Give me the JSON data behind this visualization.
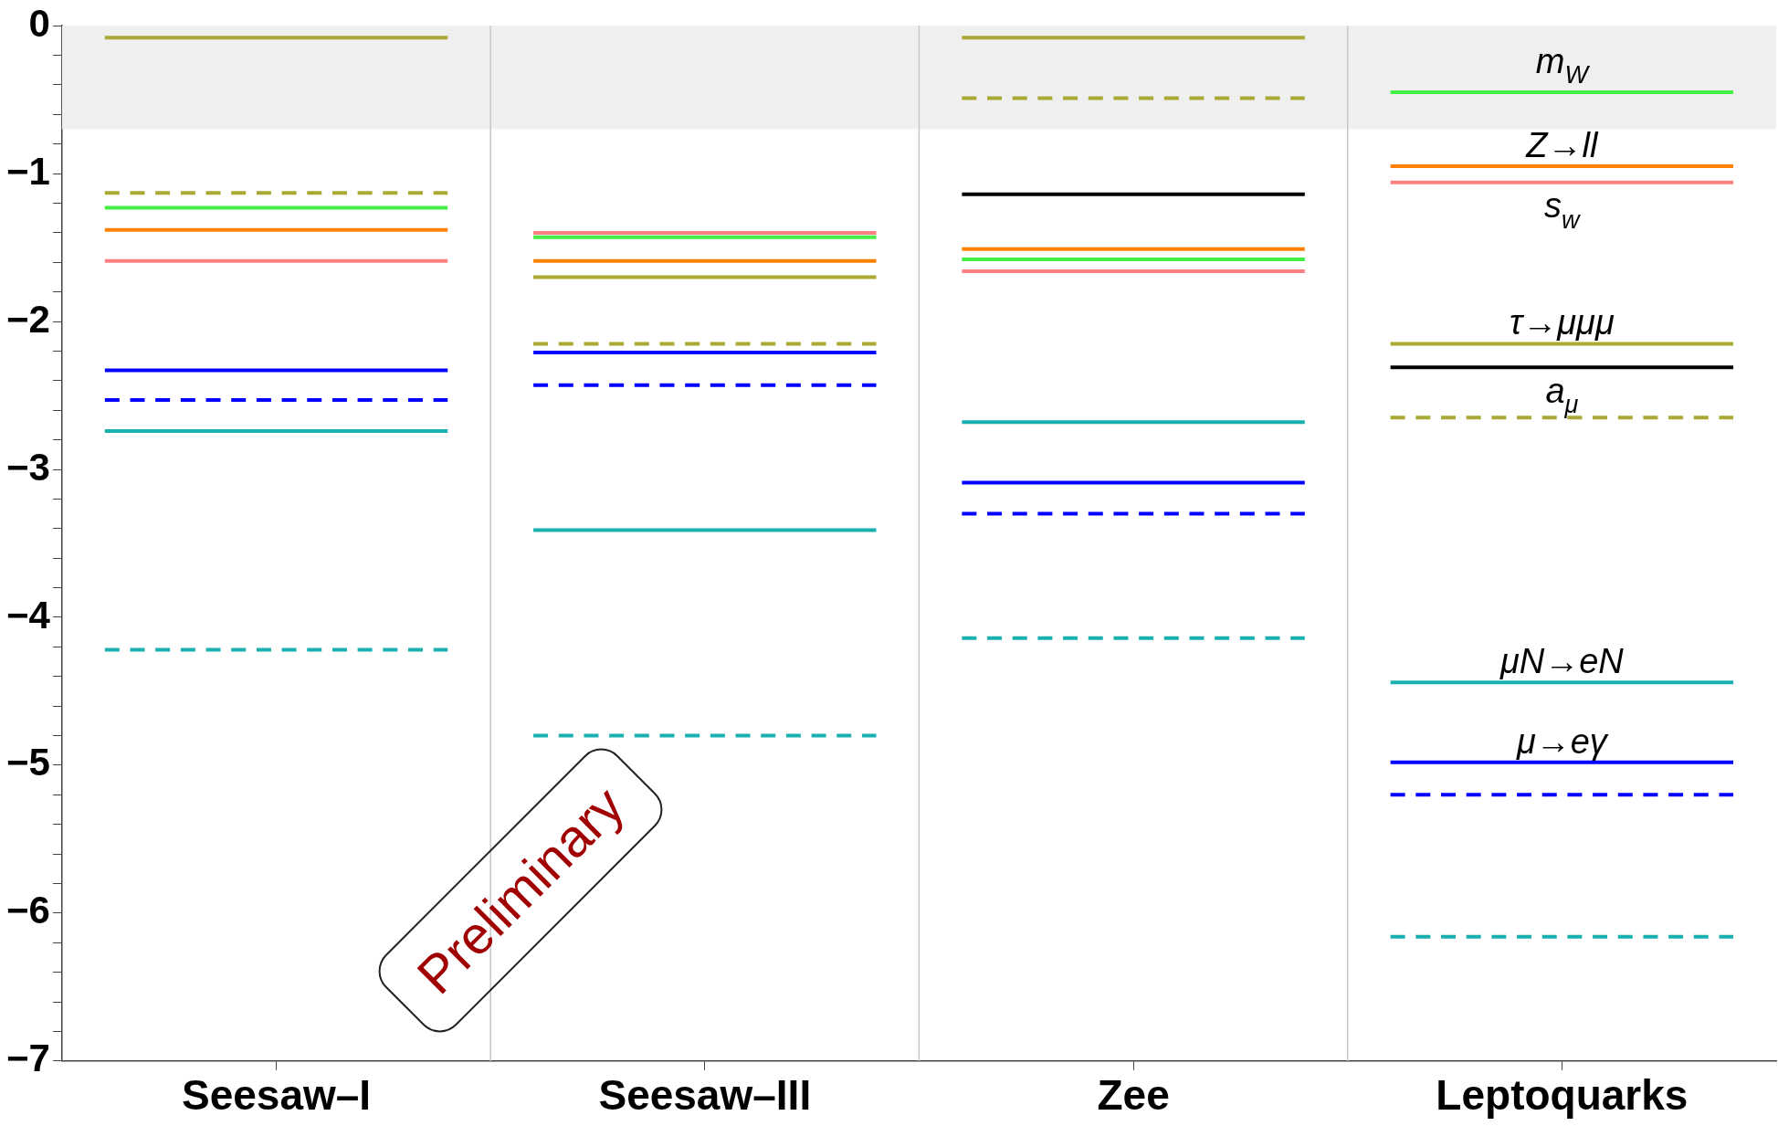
{
  "chart_data": {
    "type": "line",
    "categories": [
      null,
      null,
      "Seesaw–I",
      null,
      null,
      null,
      null,
      "Seesaw–III",
      null,
      null,
      null,
      null,
      "Zee",
      null,
      null,
      null,
      null,
      "Leptoquarks",
      null,
      null
    ],
    "ylim": [
      -7,
      0
    ],
    "yticks": [
      {
        "value": -7,
        "label": "−7"
      },
      {
        "value": -6.8,
        "label": null
      },
      {
        "value": -6.6,
        "label": null
      },
      {
        "value": -6.4,
        "label": null
      },
      {
        "value": -6.2,
        "label": null
      },
      {
        "value": -6,
        "label": "−6"
      },
      {
        "value": -5.8,
        "label": null
      },
      {
        "value": -5.6,
        "label": null
      },
      {
        "value": -5.4,
        "label": null
      },
      {
        "value": -5.2,
        "label": null
      },
      {
        "value": -5,
        "label": "−5"
      },
      {
        "value": -4.8,
        "label": null
      },
      {
        "value": -4.6,
        "label": null
      },
      {
        "value": -4.4,
        "label": null
      },
      {
        "value": -4.2,
        "label": null
      },
      {
        "value": -4,
        "label": "−4"
      },
      {
        "value": -3.8,
        "label": null
      },
      {
        "value": -3.6,
        "label": null
      },
      {
        "value": -3.4,
        "label": null
      },
      {
        "value": -3.2,
        "label": null
      },
      {
        "value": -3,
        "label": "−3"
      },
      {
        "value": -2.8,
        "label": null
      },
      {
        "value": -2.6,
        "label": null
      },
      {
        "value": -2.4,
        "label": null
      },
      {
        "value": -2.2,
        "label": null
      },
      {
        "value": -2,
        "label": "−2"
      },
      {
        "value": -1.8,
        "label": null
      },
      {
        "value": -1.6,
        "label": null
      },
      {
        "value": -1.4,
        "label": null
      },
      {
        "value": -1.2,
        "label": null
      },
      {
        "value": -1,
        "label": "−1"
      },
      {
        "value": -0.8,
        "label": null
      },
      {
        "value": -0.6,
        "label": null
      },
      {
        "value": -0.4,
        "label": null
      },
      {
        "value": -0.2,
        "label": null
      },
      {
        "value": 0,
        "label": "0"
      }
    ],
    "bands": [
      {
        "axis": "y",
        "from": -0.7,
        "to": 0,
        "color": "#efefef"
      }
    ],
    "grid": "x",
    "annotations": [
      "Preliminary"
    ],
    "series": [
      {
        "color": "#a9a933",
        "line_style": "solid",
        "values": [
          -0.08,
          -0.08,
          -0.08,
          -0.08,
          -0.08,
          null,
          null,
          null,
          null,
          null,
          null,
          null,
          null,
          null,
          null,
          null,
          null,
          null,
          null,
          null
        ]
      },
      {
        "color": "#a9a933",
        "line_style": "dashed",
        "values": [
          -1.13,
          -1.13,
          -1.13,
          -1.13,
          -1.13,
          null,
          null,
          null,
          null,
          null,
          null,
          null,
          null,
          null,
          null,
          null,
          null,
          null,
          null,
          null
        ]
      },
      {
        "color": "#44ee44",
        "line_style": "solid",
        "values": [
          -1.23,
          -1.23,
          -1.23,
          -1.23,
          -1.23,
          null,
          null,
          null,
          null,
          null,
          null,
          null,
          null,
          null,
          null,
          null,
          null,
          null,
          null,
          null
        ]
      },
      {
        "color": "#ff8000",
        "line_style": "solid",
        "values": [
          -1.38,
          -1.38,
          -1.38,
          -1.38,
          -1.38,
          null,
          null,
          null,
          null,
          null,
          null,
          null,
          null,
          null,
          null,
          null,
          null,
          null,
          null,
          null
        ]
      },
      {
        "color": "#ff8080",
        "line_style": "solid",
        "values": [
          -1.59,
          -1.59,
          -1.59,
          -1.59,
          -1.59,
          null,
          null,
          null,
          null,
          null,
          null,
          null,
          null,
          null,
          null,
          null,
          null,
          null,
          null,
          null
        ]
      },
      {
        "color": "#0000ff",
        "line_style": "solid",
        "values": [
          -2.33,
          -2.33,
          -2.33,
          -2.33,
          -2.33,
          null,
          null,
          null,
          null,
          null,
          null,
          null,
          null,
          null,
          null,
          null,
          null,
          null,
          null,
          null
        ]
      },
      {
        "color": "#0000ff",
        "line_style": "dashed",
        "values": [
          -2.53,
          -2.53,
          -2.53,
          -2.53,
          -2.53,
          null,
          null,
          null,
          null,
          null,
          null,
          null,
          null,
          null,
          null,
          null,
          null,
          null,
          null,
          null
        ]
      },
      {
        "color": "#1ab0b0",
        "line_style": "solid",
        "values": [
          -2.74,
          -2.74,
          -2.74,
          -2.74,
          -2.74,
          null,
          null,
          null,
          null,
          null,
          null,
          null,
          null,
          null,
          null,
          null,
          null,
          null,
          null,
          null
        ]
      },
      {
        "color": "#1ab0b0",
        "line_style": "dashed",
        "values": [
          -4.22,
          -4.22,
          -4.22,
          -4.22,
          -4.22,
          null,
          null,
          null,
          null,
          null,
          null,
          null,
          null,
          null,
          null,
          null,
          null,
          null,
          null,
          null
        ]
      },
      {
        "color": "#ff8080",
        "line_style": "solid",
        "values": [
          null,
          null,
          null,
          null,
          null,
          -1.4,
          -1.4,
          -1.4,
          -1.4,
          -1.4,
          null,
          null,
          null,
          null,
          null,
          null,
          null,
          null,
          null,
          null
        ]
      },
      {
        "color": "#44ee44",
        "line_style": "solid",
        "values": [
          null,
          null,
          null,
          null,
          null,
          -1.43,
          -1.43,
          -1.43,
          -1.43,
          -1.43,
          null,
          null,
          null,
          null,
          null,
          null,
          null,
          null,
          null,
          null
        ]
      },
      {
        "color": "#ff8000",
        "line_style": "solid",
        "values": [
          null,
          null,
          null,
          null,
          null,
          -1.59,
          -1.59,
          -1.59,
          -1.59,
          -1.59,
          null,
          null,
          null,
          null,
          null,
          null,
          null,
          null,
          null,
          null
        ]
      },
      {
        "color": "#a9a933",
        "line_style": "solid",
        "values": [
          null,
          null,
          null,
          null,
          null,
          -1.7,
          -1.7,
          -1.7,
          -1.7,
          -1.7,
          null,
          null,
          null,
          null,
          null,
          null,
          null,
          null,
          null,
          null
        ]
      },
      {
        "color": "#a9a933",
        "line_style": "dashed",
        "values": [
          null,
          null,
          null,
          null,
          null,
          -2.15,
          -2.15,
          -2.15,
          -2.15,
          -2.15,
          null,
          null,
          null,
          null,
          null,
          null,
          null,
          null,
          null,
          null
        ]
      },
      {
        "color": "#0000ff",
        "line_style": "solid",
        "values": [
          null,
          null,
          null,
          null,
          null,
          -2.21,
          -2.21,
          -2.21,
          -2.21,
          -2.21,
          null,
          null,
          null,
          null,
          null,
          null,
          null,
          null,
          null,
          null
        ]
      },
      {
        "color": "#0000ff",
        "line_style": "dashed",
        "values": [
          null,
          null,
          null,
          null,
          null,
          -2.43,
          -2.43,
          -2.43,
          -2.43,
          -2.43,
          null,
          null,
          null,
          null,
          null,
          null,
          null,
          null,
          null,
          null
        ]
      },
      {
        "color": "#1ab0b0",
        "line_style": "solid",
        "values": [
          null,
          null,
          null,
          null,
          null,
          -3.41,
          -3.41,
          -3.41,
          -3.41,
          -3.41,
          null,
          null,
          null,
          null,
          null,
          null,
          null,
          null,
          null,
          null
        ]
      },
      {
        "color": "#1ab0b0",
        "line_style": "dashed",
        "values": [
          null,
          null,
          null,
          null,
          null,
          -4.8,
          -4.8,
          -4.8,
          -4.8,
          -4.8,
          null,
          null,
          null,
          null,
          null,
          null,
          null,
          null,
          null,
          null
        ]
      },
      {
        "color": "#a9a933",
        "line_style": "solid",
        "values": [
          null,
          null,
          null,
          null,
          null,
          null,
          null,
          null,
          null,
          null,
          -0.08,
          -0.08,
          -0.08,
          -0.08,
          -0.08,
          null,
          null,
          null,
          null,
          null
        ]
      },
      {
        "color": "#a9a933",
        "line_style": "dashed",
        "values": [
          null,
          null,
          null,
          null,
          null,
          null,
          null,
          null,
          null,
          null,
          -0.49,
          -0.49,
          -0.49,
          -0.49,
          -0.49,
          null,
          null,
          null,
          null,
          null
        ]
      },
      {
        "color": "#000000",
        "line_style": "solid",
        "values": [
          null,
          null,
          null,
          null,
          null,
          null,
          null,
          null,
          null,
          null,
          -1.14,
          -1.14,
          -1.14,
          -1.14,
          -1.14,
          null,
          null,
          null,
          null,
          null
        ]
      },
      {
        "color": "#ff8000",
        "line_style": "solid",
        "values": [
          null,
          null,
          null,
          null,
          null,
          null,
          null,
          null,
          null,
          null,
          -1.51,
          -1.51,
          -1.51,
          -1.51,
          -1.51,
          null,
          null,
          null,
          null,
          null
        ]
      },
      {
        "color": "#44ee44",
        "line_style": "solid",
        "values": [
          null,
          null,
          null,
          null,
          null,
          null,
          null,
          null,
          null,
          null,
          -1.58,
          -1.58,
          -1.58,
          -1.58,
          -1.58,
          null,
          null,
          null,
          null,
          null
        ]
      },
      {
        "color": "#ff8080",
        "line_style": "solid",
        "values": [
          null,
          null,
          null,
          null,
          null,
          null,
          null,
          null,
          null,
          null,
          -1.66,
          -1.66,
          -1.66,
          -1.66,
          -1.66,
          null,
          null,
          null,
          null,
          null
        ]
      },
      {
        "color": "#1ab0b0",
        "line_style": "solid",
        "values": [
          null,
          null,
          null,
          null,
          null,
          null,
          null,
          null,
          null,
          null,
          -2.68,
          -2.68,
          -2.68,
          -2.68,
          -2.68,
          null,
          null,
          null,
          null,
          null
        ]
      },
      {
        "color": "#0000ff",
        "line_style": "solid",
        "values": [
          null,
          null,
          null,
          null,
          null,
          null,
          null,
          null,
          null,
          null,
          -3.09,
          -3.09,
          -3.09,
          -3.09,
          -3.09,
          null,
          null,
          null,
          null,
          null
        ]
      },
      {
        "color": "#0000ff",
        "line_style": "dashed",
        "values": [
          null,
          null,
          null,
          null,
          null,
          null,
          null,
          null,
          null,
          null,
          -3.3,
          -3.3,
          -3.3,
          -3.3,
          -3.3,
          null,
          null,
          null,
          null,
          null
        ]
      },
      {
        "color": "#1ab0b0",
        "line_style": "dashed",
        "values": [
          null,
          null,
          null,
          null,
          null,
          null,
          null,
          null,
          null,
          null,
          -4.14,
          -4.14,
          -4.14,
          -4.14,
          -4.14,
          null,
          null,
          null,
          null,
          null
        ]
      },
      {
        "name": "m$_{W}$",
        "color": "#44ee44",
        "line_style": "solid",
        "values": [
          null,
          null,
          null,
          null,
          null,
          null,
          null,
          null,
          null,
          null,
          null,
          null,
          null,
          null,
          null,
          -0.45,
          -0.45,
          -0.45,
          -0.45,
          -0.45
        ]
      },
      {
        "name": "Z→ll",
        "color": "#ff8000",
        "line_style": "solid",
        "values": [
          null,
          null,
          null,
          null,
          null,
          null,
          null,
          null,
          null,
          null,
          null,
          null,
          null,
          null,
          null,
          -0.95,
          -0.95,
          -0.95,
          -0.95,
          -0.95
        ]
      },
      {
        "name": "s$_{w}$",
        "color": "#ff8080",
        "line_style": "solid",
        "values": [
          null,
          null,
          null,
          null,
          null,
          null,
          null,
          null,
          null,
          null,
          null,
          null,
          null,
          null,
          null,
          -1.06,
          -1.06,
          -1.06,
          -1.06,
          -1.06
        ]
      },
      {
        "name": "τ→μμμ",
        "color": "#a9a933",
        "line_style": "solid",
        "values": [
          null,
          null,
          null,
          null,
          null,
          null,
          null,
          null,
          null,
          null,
          null,
          null,
          null,
          null,
          null,
          -2.15,
          -2.15,
          -2.15,
          -2.15,
          -2.15
        ]
      },
      {
        "name": "a$_{μ}$",
        "color": "#000000",
        "line_style": "solid",
        "values": [
          null,
          null,
          null,
          null,
          null,
          null,
          null,
          null,
          null,
          null,
          null,
          null,
          null,
          null,
          null,
          -2.31,
          -2.31,
          -2.31,
          -2.31,
          -2.31
        ]
      },
      {
        "color": "#a9a933",
        "line_style": "dashed",
        "values": [
          null,
          null,
          null,
          null,
          null,
          null,
          null,
          null,
          null,
          null,
          null,
          null,
          null,
          null,
          null,
          -2.65,
          -2.65,
          -2.65,
          -2.65,
          -2.65
        ]
      },
      {
        "name": "μN→eN",
        "color": "#1ab0b0",
        "line_style": "solid",
        "values": [
          null,
          null,
          null,
          null,
          null,
          null,
          null,
          null,
          null,
          null,
          null,
          null,
          null,
          null,
          null,
          -4.44,
          -4.44,
          -4.44,
          -4.44,
          -4.44
        ]
      },
      {
        "name": "μ→eγ",
        "color": "#0000ff",
        "line_style": "solid",
        "values": [
          null,
          null,
          null,
          null,
          null,
          null,
          null,
          null,
          null,
          null,
          null,
          null,
          null,
          null,
          null,
          -4.98,
          -4.98,
          -4.98,
          -4.98,
          -4.98
        ]
      },
      {
        "color": "#0000ff",
        "line_style": "dashed",
        "values": [
          null,
          null,
          null,
          null,
          null,
          null,
          null,
          null,
          null,
          null,
          null,
          null,
          null,
          null,
          null,
          -5.2,
          -5.2,
          -5.2,
          -5.2,
          -5.2
        ]
      },
      {
        "color": "#1ab0b0",
        "line_style": "dashed",
        "values": [
          null,
          null,
          null,
          null,
          null,
          null,
          null,
          null,
          null,
          null,
          null,
          null,
          null,
          null,
          null,
          -6.16,
          -6.16,
          -6.16,
          -6.16,
          -6.16
        ]
      }
    ]
  }
}
